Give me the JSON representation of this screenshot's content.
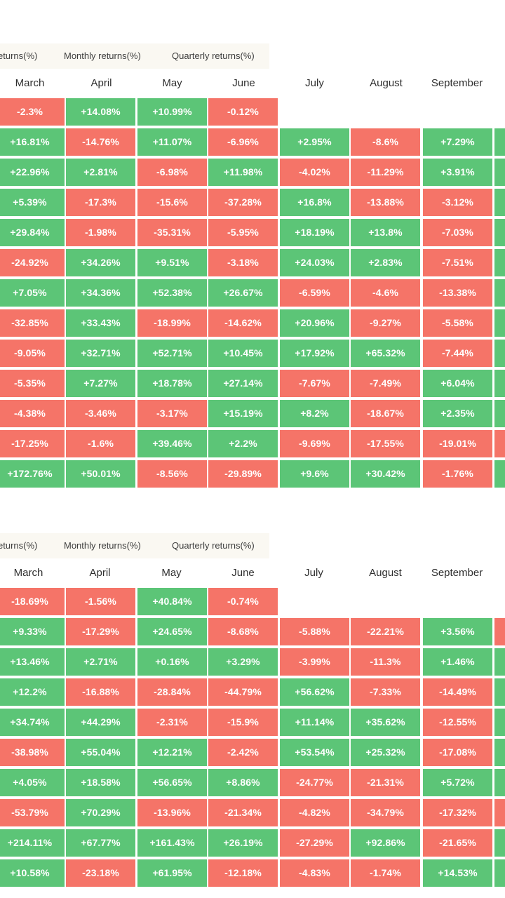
{
  "colors": {
    "positive": "#5cc577",
    "negative": "#f57468",
    "tab_bg": "#faf8f2"
  },
  "tables": [
    {
      "tabs": [
        "eturns(%)",
        "Monthly returns(%)",
        "Quarterly returns(%)"
      ],
      "months": [
        "March",
        "April",
        "May",
        "June",
        "July",
        "August",
        "September"
      ],
      "rows": [
        [
          "-2.3%",
          "+14.08%",
          "+10.99%",
          "-0.12%",
          "",
          "",
          "",
          ""
        ],
        [
          "+16.81%",
          "-14.76%",
          "+11.07%",
          "-6.96%",
          "+2.95%",
          "-8.6%",
          "+7.29%",
          "+"
        ],
        [
          "+22.96%",
          "+2.81%",
          "-6.98%",
          "+11.98%",
          "-4.02%",
          "-11.29%",
          "+3.91%",
          "+"
        ],
        [
          "+5.39%",
          "-17.3%",
          "-15.6%",
          "-37.28%",
          "+16.8%",
          "-13.88%",
          "-3.12%",
          "+"
        ],
        [
          "+29.84%",
          "-1.98%",
          "-35.31%",
          "-5.95%",
          "+18.19%",
          "+13.8%",
          "-7.03%",
          "+"
        ],
        [
          "-24.92%",
          "+34.26%",
          "+9.51%",
          "-3.18%",
          "+24.03%",
          "+2.83%",
          "-7.51%",
          "+"
        ],
        [
          "+7.05%",
          "+34.36%",
          "+52.38%",
          "+26.67%",
          "-6.59%",
          "-4.6%",
          "-13.38%",
          "+"
        ],
        [
          "-32.85%",
          "+33.43%",
          "-18.99%",
          "-14.62%",
          "+20.96%",
          "-9.27%",
          "-5.58%",
          "+"
        ],
        [
          "-9.05%",
          "+32.71%",
          "+52.71%",
          "+10.45%",
          "+17.92%",
          "+65.32%",
          "-7.44%",
          "+"
        ],
        [
          "-5.35%",
          "+7.27%",
          "+18.78%",
          "+27.14%",
          "-7.67%",
          "-7.49%",
          "+6.04%",
          "+"
        ],
        [
          "-4.38%",
          "-3.46%",
          "-3.17%",
          "+15.19%",
          "+8.2%",
          "-18.67%",
          "+2.35%",
          "+"
        ],
        [
          "-17.25%",
          "-1.6%",
          "+39.46%",
          "+2.2%",
          "-9.69%",
          "-17.55%",
          "-19.01%",
          "-"
        ],
        [
          "+172.76%",
          "+50.01%",
          "-8.56%",
          "-29.89%",
          "+9.6%",
          "+30.42%",
          "-1.76%",
          "+"
        ]
      ]
    },
    {
      "tabs": [
        "eturns(%)",
        "Monthly returns(%)",
        "Quarterly returns(%)"
      ],
      "months": [
        "March",
        "April",
        "May",
        "June",
        "July",
        "August",
        "September"
      ],
      "rows": [
        [
          "-18.69%",
          "-1.56%",
          "+40.84%",
          "-0.74%",
          "",
          "",
          "",
          ""
        ],
        [
          "+9.33%",
          "-17.29%",
          "+24.65%",
          "-8.68%",
          "-5.88%",
          "-22.21%",
          "+3.56%",
          "-"
        ],
        [
          "+13.46%",
          "+2.71%",
          "+0.16%",
          "+3.29%",
          "-3.99%",
          "-11.3%",
          "+1.46%",
          "+"
        ],
        [
          "+12.2%",
          "-16.88%",
          "-28.84%",
          "-44.79%",
          "+56.62%",
          "-7.33%",
          "-14.49%",
          "+"
        ],
        [
          "+34.74%",
          "+44.29%",
          "-2.31%",
          "-15.9%",
          "+11.14%",
          "+35.62%",
          "-12.55%",
          "+"
        ],
        [
          "-38.98%",
          "+55.04%",
          "+12.21%",
          "-2.42%",
          "+53.54%",
          "+25.32%",
          "-17.08%",
          "+"
        ],
        [
          "+4.05%",
          "+18.58%",
          "+56.65%",
          "+8.86%",
          "-24.77%",
          "-21.31%",
          "+5.72%",
          "+"
        ],
        [
          "-53.79%",
          "+70.29%",
          "-13.96%",
          "-21.34%",
          "-4.82%",
          "-34.79%",
          "-17.32%",
          "-"
        ],
        [
          "+214.11%",
          "+67.77%",
          "+161.43%",
          "+26.19%",
          "-27.29%",
          "+92.86%",
          "-21.65%",
          "+"
        ],
        [
          "+10.58%",
          "-23.18%",
          "+61.95%",
          "-12.18%",
          "-4.83%",
          "-1.74%",
          "+14.53%",
          "+"
        ]
      ]
    }
  ]
}
